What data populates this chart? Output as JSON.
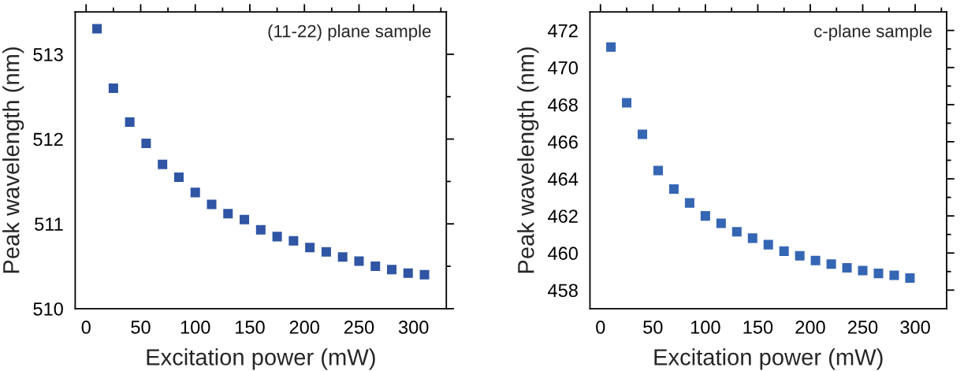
{
  "chart_data": [
    {
      "type": "scatter",
      "xlabel": "Excitation power (mW)",
      "ylabel": "Peak wavelength (nm)",
      "annotations": [
        "(11-22) plane sample"
      ],
      "marker": "square",
      "grid": false,
      "xlim": [
        -10,
        330
      ],
      "ylim": [
        510,
        513.5
      ],
      "xticks": [
        0,
        50,
        100,
        150,
        200,
        250,
        300
      ],
      "yticks": [
        510,
        511,
        512,
        513
      ],
      "series": [
        {
          "color": "#2f55a4",
          "x": [
            10,
            25,
            40,
            55,
            70,
            85,
            100,
            115,
            130,
            145,
            160,
            175,
            190,
            205,
            220,
            235,
            250,
            265,
            280,
            295,
            310
          ],
          "values": [
            513.3,
            512.6,
            512.2,
            511.95,
            511.7,
            511.55,
            511.37,
            511.23,
            511.12,
            511.05,
            510.93,
            510.85,
            510.8,
            510.72,
            510.67,
            510.61,
            510.56,
            510.5,
            510.46,
            510.42,
            510.4
          ]
        }
      ]
    },
    {
      "type": "scatter",
      "xlabel": "Excitation power (mW)",
      "ylabel": "Peak wavelength (nm)",
      "annotations": [
        "c-plane sample"
      ],
      "marker": "square",
      "grid": false,
      "xlim": [
        -10,
        330
      ],
      "ylim": [
        457,
        473
      ],
      "xticks": [
        0,
        50,
        100,
        150,
        200,
        250,
        300
      ],
      "yticks": [
        458,
        460,
        462,
        464,
        466,
        468,
        470,
        472
      ],
      "series": [
        {
          "color": "#3566b4",
          "x": [
            10,
            25,
            40,
            55,
            70,
            85,
            100,
            115,
            130,
            145,
            160,
            175,
            190,
            205,
            220,
            235,
            250,
            265,
            280,
            295
          ],
          "values": [
            471.1,
            468.1,
            466.4,
            464.45,
            463.45,
            462.7,
            462.0,
            461.6,
            461.15,
            460.8,
            460.45,
            460.1,
            459.85,
            459.6,
            459.4,
            459.2,
            459.05,
            458.9,
            458.8,
            458.65
          ]
        }
      ]
    }
  ]
}
